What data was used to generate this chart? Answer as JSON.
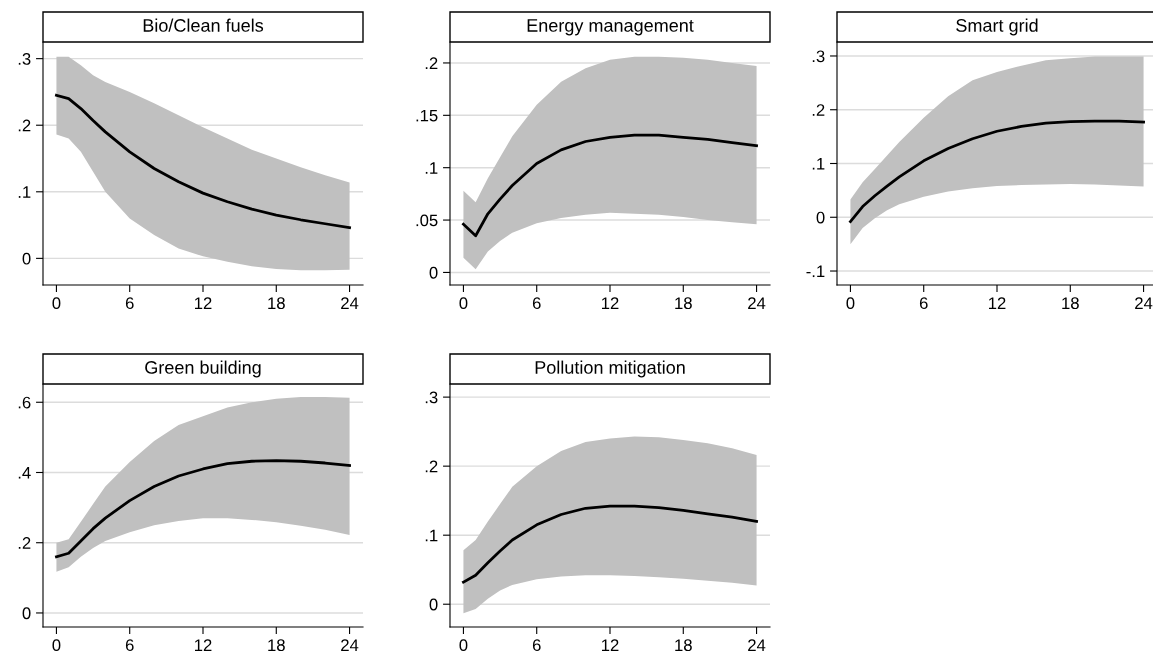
{
  "chart_data": [
    {
      "type": "line",
      "title": "Bio/Clean fuels",
      "x": [
        0,
        1,
        2,
        3,
        4,
        6,
        8,
        10,
        12,
        14,
        16,
        18,
        20,
        22,
        24
      ],
      "series": [
        {
          "color": "#000000",
          "values": [
            0.245,
            0.24,
            0.225,
            0.207,
            0.19,
            0.16,
            0.135,
            0.115,
            0.098,
            0.085,
            0.074,
            0.065,
            0.058,
            0.052,
            0.046
          ],
          "upper": [
            0.303,
            0.303,
            0.29,
            0.275,
            0.265,
            0.25,
            0.233,
            0.215,
            0.197,
            0.18,
            0.163,
            0.15,
            0.137,
            0.125,
            0.114
          ],
          "lower": [
            0.186,
            0.18,
            0.16,
            0.13,
            0.1,
            0.06,
            0.035,
            0.015,
            0.003,
            -0.005,
            -0.012,
            -0.016,
            -0.018,
            -0.018,
            -0.017
          ]
        }
      ],
      "xlim": [
        -1.1,
        25.1
      ],
      "xticks": [
        0,
        6,
        12,
        18,
        24
      ],
      "ylim": [
        -0.04,
        0.325
      ],
      "yticks": [
        0,
        {
          "value": 0.1,
          "label": ".1"
        },
        {
          "value": 0.2,
          "label": ".2"
        },
        {
          "value": 0.3,
          "label": ".3"
        }
      ],
      "grid": "y"
    },
    {
      "type": "line",
      "title": "Energy management",
      "x": [
        0,
        1,
        2,
        3,
        4,
        6,
        8,
        10,
        12,
        14,
        16,
        18,
        20,
        22,
        24
      ],
      "series": [
        {
          "color": "#000000",
          "values": [
            0.046,
            0.035,
            0.056,
            0.07,
            0.083,
            0.104,
            0.117,
            0.125,
            0.129,
            0.131,
            0.131,
            0.129,
            0.127,
            0.124,
            0.121
          ],
          "upper": [
            0.078,
            0.067,
            0.09,
            0.11,
            0.13,
            0.16,
            0.182,
            0.195,
            0.203,
            0.206,
            0.206,
            0.205,
            0.203,
            0.2,
            0.197
          ],
          "lower": [
            0.014,
            0.003,
            0.02,
            0.03,
            0.038,
            0.047,
            0.052,
            0.055,
            0.057,
            0.056,
            0.055,
            0.053,
            0.05,
            0.048,
            0.046
          ]
        }
      ],
      "xlim": [
        -1.1,
        25.1
      ],
      "xticks": [
        0,
        6,
        12,
        18,
        24
      ],
      "ylim": [
        -0.012,
        0.22
      ],
      "yticks": [
        0,
        {
          "value": 0.05,
          "label": ".05"
        },
        {
          "value": 0.1,
          "label": ".1"
        },
        {
          "value": 0.15,
          "label": ".15"
        },
        {
          "value": 0.2,
          "label": ".2"
        }
      ],
      "grid": "y"
    },
    {
      "type": "line",
      "title": "Smart grid",
      "x": [
        0,
        1,
        2,
        3,
        4,
        6,
        8,
        10,
        12,
        14,
        16,
        18,
        20,
        22,
        24
      ],
      "series": [
        {
          "color": "#000000",
          "values": [
            -0.008,
            0.02,
            0.04,
            0.058,
            0.075,
            0.105,
            0.128,
            0.146,
            0.16,
            0.169,
            0.175,
            0.178,
            0.179,
            0.179,
            0.177
          ],
          "upper": [
            0.033,
            0.065,
            0.09,
            0.115,
            0.14,
            0.185,
            0.225,
            0.255,
            0.27,
            0.282,
            0.292,
            0.296,
            0.299,
            0.299,
            0.299
          ],
          "lower": [
            -0.05,
            -0.02,
            -0.002,
            0.013,
            0.024,
            0.038,
            0.048,
            0.054,
            0.058,
            0.06,
            0.061,
            0.062,
            0.061,
            0.059,
            0.057
          ]
        }
      ],
      "xlim": [
        -1.1,
        25.1
      ],
      "xticks": [
        0,
        6,
        12,
        18,
        24
      ],
      "ylim": [
        -0.126,
        0.326
      ],
      "yticks": [
        {
          "value": -0.1,
          "label": "-.1"
        },
        0,
        {
          "value": 0.1,
          "label": ".1"
        },
        {
          "value": 0.2,
          "label": ".2"
        },
        {
          "value": 0.3,
          "label": ".3"
        }
      ],
      "grid": "y"
    },
    {
      "type": "line",
      "title": "Green building",
      "x": [
        0,
        1,
        2,
        3,
        4,
        6,
        8,
        10,
        12,
        14,
        16,
        18,
        20,
        22,
        24
      ],
      "series": [
        {
          "color": "#000000",
          "values": [
            0.16,
            0.17,
            0.205,
            0.24,
            0.27,
            0.32,
            0.36,
            0.39,
            0.41,
            0.425,
            0.432,
            0.434,
            0.432,
            0.427,
            0.42
          ],
          "upper": [
            0.2,
            0.21,
            0.26,
            0.31,
            0.36,
            0.43,
            0.49,
            0.535,
            0.56,
            0.585,
            0.6,
            0.61,
            0.615,
            0.615,
            0.613
          ],
          "lower": [
            0.117,
            0.13,
            0.16,
            0.185,
            0.205,
            0.23,
            0.25,
            0.262,
            0.27,
            0.27,
            0.265,
            0.258,
            0.248,
            0.237,
            0.222
          ]
        }
      ],
      "xlim": [
        -1.1,
        25.1
      ],
      "xticks": [
        0,
        6,
        12,
        18,
        24
      ],
      "ylim": [
        -0.04,
        0.652
      ],
      "yticks": [
        0,
        {
          "value": 0.2,
          "label": ".2"
        },
        {
          "value": 0.4,
          "label": ".4"
        },
        {
          "value": 0.6,
          "label": ".6"
        }
      ],
      "grid": "y"
    },
    {
      "type": "line",
      "title": "Pollution mitigation",
      "x": [
        0,
        1,
        2,
        3,
        4,
        6,
        8,
        10,
        12,
        14,
        16,
        18,
        20,
        22,
        24
      ],
      "series": [
        {
          "color": "#000000",
          "values": [
            0.032,
            0.042,
            0.06,
            0.077,
            0.093,
            0.115,
            0.13,
            0.139,
            0.142,
            0.142,
            0.14,
            0.136,
            0.131,
            0.126,
            0.12
          ],
          "upper": [
            0.078,
            0.093,
            0.12,
            0.145,
            0.17,
            0.2,
            0.222,
            0.235,
            0.24,
            0.243,
            0.242,
            0.238,
            0.233,
            0.226,
            0.216
          ],
          "lower": [
            -0.013,
            -0.007,
            0.008,
            0.02,
            0.028,
            0.036,
            0.04,
            0.042,
            0.042,
            0.041,
            0.039,
            0.037,
            0.034,
            0.031,
            0.027
          ]
        }
      ],
      "xlim": [
        -1.1,
        25.1
      ],
      "xticks": [
        0,
        6,
        12,
        18,
        24
      ],
      "ylim": [
        -0.033,
        0.319
      ],
      "yticks": [
        0,
        {
          "value": 0.1,
          "label": ".1"
        },
        {
          "value": 0.2,
          "label": ".2"
        },
        {
          "value": 0.3,
          "label": ".3"
        }
      ],
      "grid": "y"
    }
  ]
}
